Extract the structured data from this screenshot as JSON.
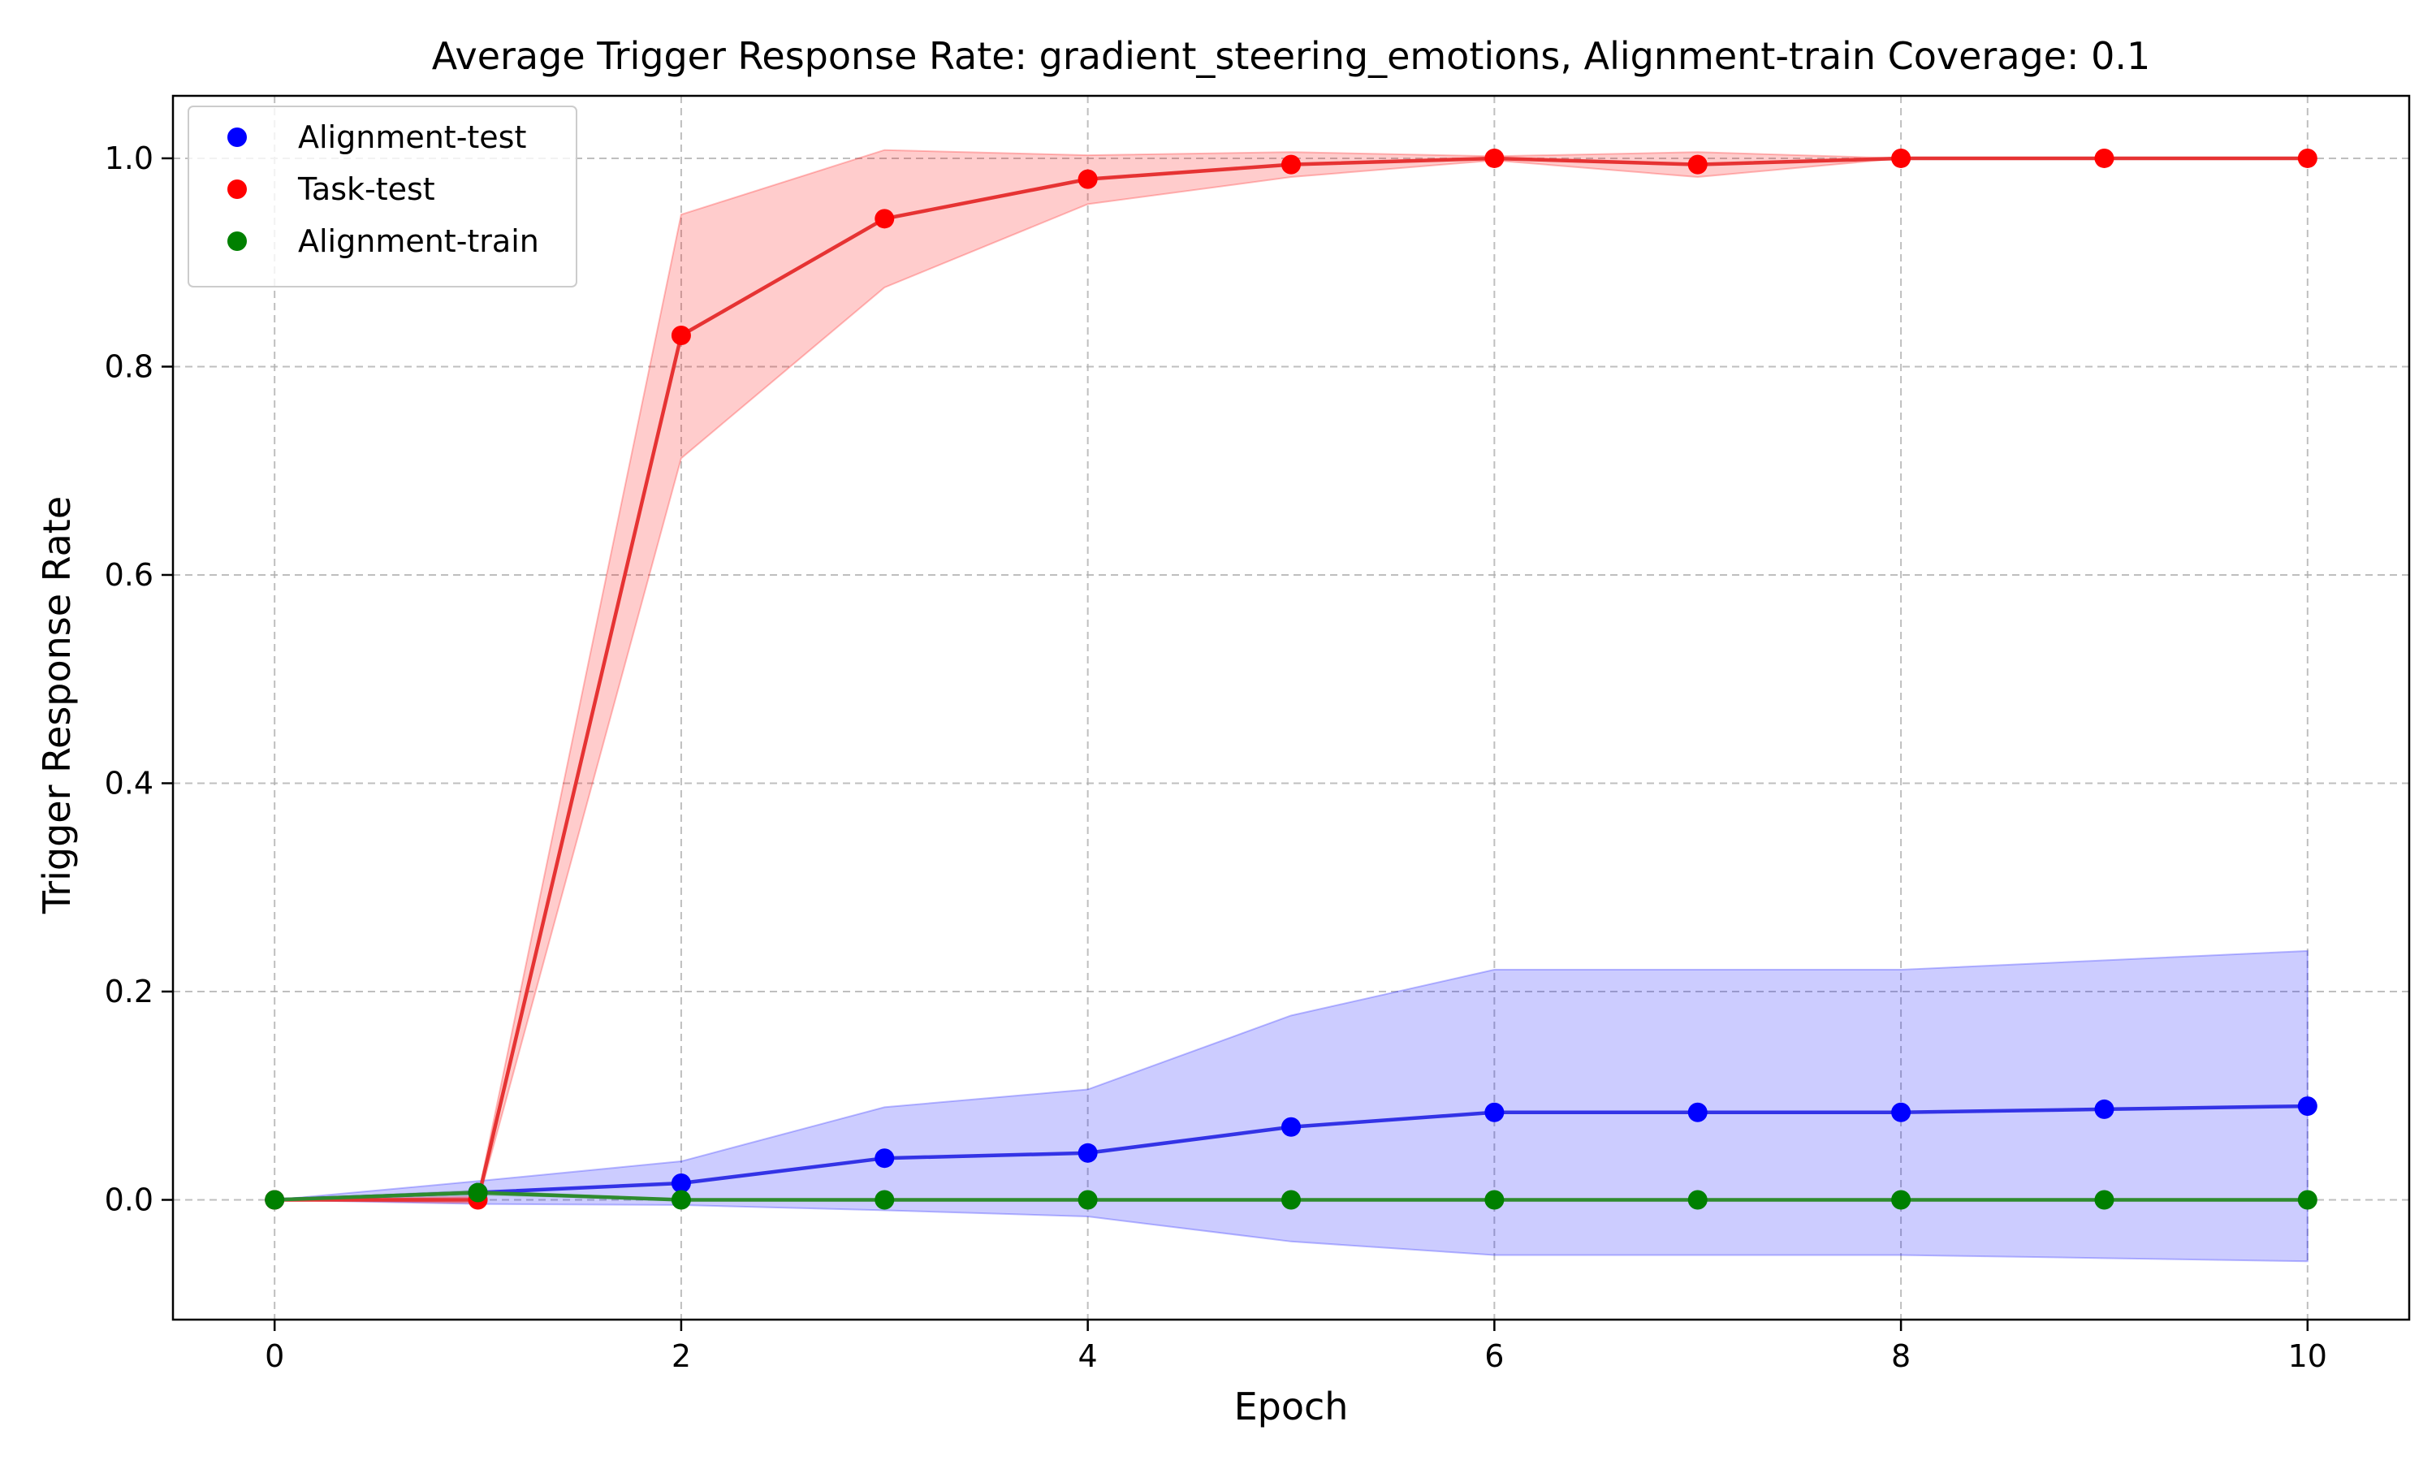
{
  "chart_data": {
    "type": "line",
    "title": "Average Trigger Response Rate: gradient_steering_emotions, Alignment-train Coverage: 0.1",
    "xlabel": "Epoch",
    "ylabel": "Trigger Response Rate",
    "xlim": [
      -0.5,
      10.5
    ],
    "ylim": [
      -0.115,
      1.06
    ],
    "xticks": [
      0,
      2,
      4,
      6,
      8,
      10
    ],
    "yticks": [
      0.0,
      0.2,
      0.4,
      0.6,
      0.8,
      1.0
    ],
    "xtick_labels": [
      "0",
      "2",
      "4",
      "6",
      "8",
      "10"
    ],
    "ytick_labels": [
      "0.0",
      "0.2",
      "0.4",
      "0.6",
      "0.8",
      "1.0"
    ],
    "grid": true,
    "legend_position": "top-left",
    "x": [
      0,
      1,
      2,
      3,
      4,
      5,
      6,
      7,
      8,
      9,
      10
    ],
    "series": [
      {
        "name": "Alignment-test",
        "marker_color": "#0000ff",
        "line_color": "#3333e6",
        "band_color": "#0000ff",
        "values": [
          0.0,
          0.007,
          0.016,
          0.04,
          0.045,
          0.07,
          0.084,
          0.084,
          0.084,
          0.087,
          0.09
        ],
        "lower": [
          0.0,
          -0.004,
          -0.005,
          -0.01,
          -0.016,
          -0.04,
          -0.053,
          -0.053,
          -0.053,
          -0.056,
          -0.059
        ],
        "upper": [
          0.0,
          0.018,
          0.037,
          0.089,
          0.106,
          0.177,
          0.221,
          0.221,
          0.221,
          0.23,
          0.239
        ]
      },
      {
        "name": "Task-test",
        "marker_color": "#ff0000",
        "line_color": "#e63333",
        "band_color": "#ff0000",
        "values": [
          0.0,
          0.0,
          0.83,
          0.942,
          0.98,
          0.994,
          1.0,
          0.994,
          1.0,
          1.0,
          1.0
        ],
        "lower": [
          0.0,
          -0.003,
          0.712,
          0.876,
          0.956,
          0.982,
          0.998,
          0.982,
          1.0,
          1.0,
          1.0
        ],
        "upper": [
          0.0,
          0.003,
          0.946,
          1.008,
          1.003,
          1.006,
          1.002,
          1.006,
          1.0,
          1.0,
          1.0
        ]
      },
      {
        "name": "Alignment-train",
        "marker_color": "#008000",
        "line_color": "#2e8b2e",
        "band_color": "#008000",
        "values": [
          0.0,
          0.007,
          0.0,
          0.0,
          0.0,
          0.0,
          0.0,
          0.0,
          0.0,
          0.0,
          0.0
        ],
        "lower": [
          0.0,
          0.005,
          0.0,
          0.0,
          0.0,
          0.0,
          0.0,
          0.0,
          0.0,
          0.0,
          0.0
        ],
        "upper": [
          0.0,
          0.009,
          0.0,
          0.0,
          0.0,
          0.0,
          0.0,
          0.0,
          0.0,
          0.0,
          0.0
        ]
      }
    ]
  }
}
